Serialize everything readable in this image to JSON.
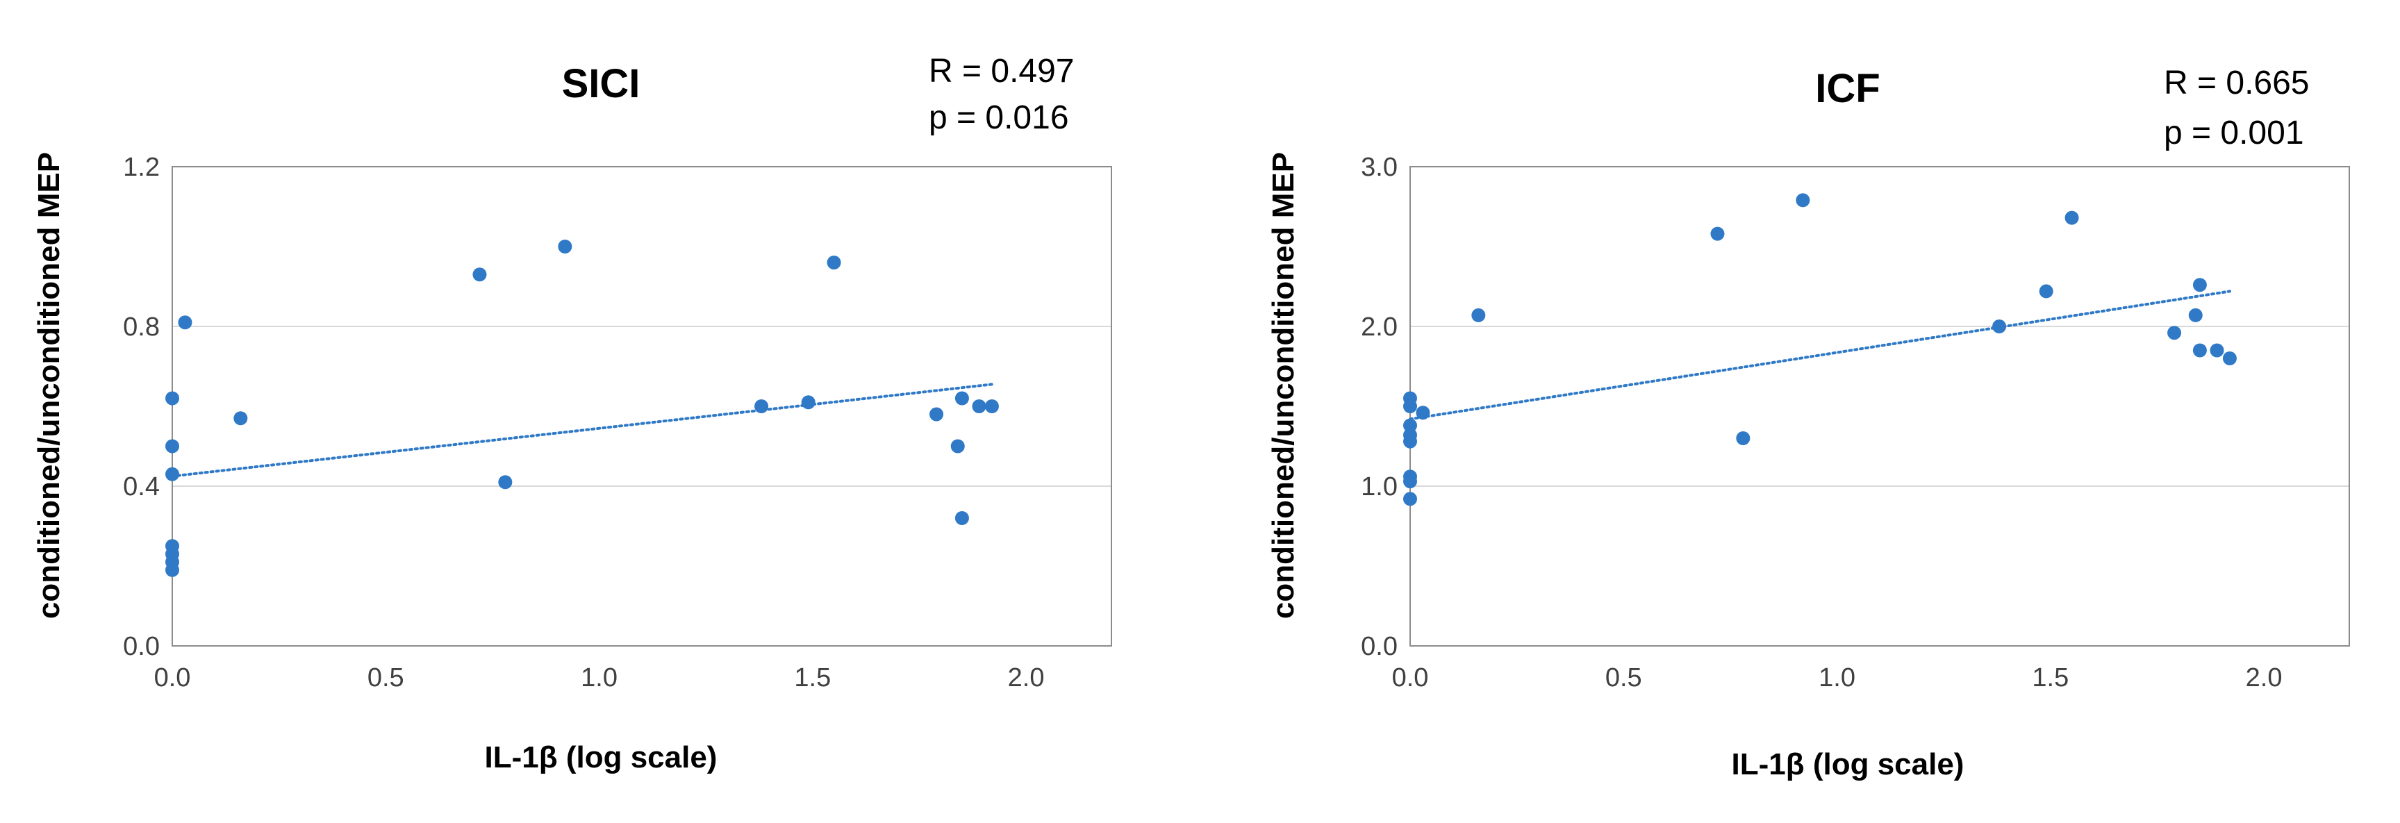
{
  "colors": {
    "point": "#2f79c6",
    "trend": "#2f79c6",
    "grid": "#d9d9d9",
    "frame": "#8c8c8c",
    "tick_text": "#404040",
    "text": "#000000"
  },
  "chart_data": [
    {
      "type": "scatter",
      "title": "SICI",
      "stats": {
        "r": "R = 0.497",
        "p": "p = 0.016"
      },
      "xlabel": "IL-1β (log scale)",
      "ylabel": "conditioned/unconditioned MEP",
      "xlim": [
        0,
        2.2
      ],
      "ylim": [
        0,
        1.2
      ],
      "xticks": [
        0,
        0.5,
        1,
        1.5,
        2
      ],
      "xtick_labels": [
        "0.0",
        "0.5",
        "1.0",
        "1.5",
        "2.0"
      ],
      "yticks": [
        0,
        0.4,
        0.8,
        1.2
      ],
      "ytick_labels": [
        "0.0",
        "0.4",
        "0.8",
        "1.2"
      ],
      "grid": "horizontal",
      "points": [
        {
          "x": 0.0,
          "y": 0.62
        },
        {
          "x": 0.0,
          "y": 0.5
        },
        {
          "x": 0.0,
          "y": 0.43
        },
        {
          "x": 0.0,
          "y": 0.25
        },
        {
          "x": 0.0,
          "y": 0.23
        },
        {
          "x": 0.0,
          "y": 0.21
        },
        {
          "x": 0.0,
          "y": 0.19
        },
        {
          "x": 0.03,
          "y": 0.81
        },
        {
          "x": 0.16,
          "y": 0.57
        },
        {
          "x": 0.72,
          "y": 0.93
        },
        {
          "x": 0.78,
          "y": 0.41
        },
        {
          "x": 0.92,
          "y": 1.0
        },
        {
          "x": 1.38,
          "y": 0.6
        },
        {
          "x": 1.49,
          "y": 0.61
        },
        {
          "x": 1.55,
          "y": 0.96
        },
        {
          "x": 1.79,
          "y": 0.58
        },
        {
          "x": 1.84,
          "y": 0.5
        },
        {
          "x": 1.85,
          "y": 0.62
        },
        {
          "x": 1.85,
          "y": 0.32
        },
        {
          "x": 1.89,
          "y": 0.6
        },
        {
          "x": 1.92,
          "y": 0.6
        }
      ],
      "trendline": {
        "x": [
          0,
          1.92
        ],
        "y": [
          0.425,
          0.655
        ]
      }
    },
    {
      "type": "scatter",
      "title": "ICF",
      "stats": {
        "r": "R = 0.665",
        "p": "p = 0.001"
      },
      "xlabel": "IL-1β (log scale)",
      "ylabel": "conditioned/unconditioned MEP",
      "xlim": [
        0,
        2.2
      ],
      "ylim": [
        0,
        3.0
      ],
      "xticks": [
        0,
        0.5,
        1,
        1.5,
        2
      ],
      "xtick_labels": [
        "0.0",
        "0.5",
        "1.0",
        "1.5",
        "2.0"
      ],
      "yticks": [
        0,
        1,
        2,
        3
      ],
      "ytick_labels": [
        "0.0",
        "1.0",
        "2.0",
        "3.0"
      ],
      "grid": "horizontal",
      "points": [
        {
          "x": 0.0,
          "y": 1.55
        },
        {
          "x": 0.0,
          "y": 1.5
        },
        {
          "x": 0.0,
          "y": 1.38
        },
        {
          "x": 0.0,
          "y": 1.32
        },
        {
          "x": 0.0,
          "y": 1.28
        },
        {
          "x": 0.0,
          "y": 1.06
        },
        {
          "x": 0.0,
          "y": 1.03
        },
        {
          "x": 0.0,
          "y": 0.92
        },
        {
          "x": 0.03,
          "y": 1.46
        },
        {
          "x": 0.16,
          "y": 2.07
        },
        {
          "x": 0.72,
          "y": 2.58
        },
        {
          "x": 0.78,
          "y": 1.3
        },
        {
          "x": 0.92,
          "y": 2.79
        },
        {
          "x": 1.38,
          "y": 2.0
        },
        {
          "x": 1.49,
          "y": 2.22
        },
        {
          "x": 1.55,
          "y": 2.68
        },
        {
          "x": 1.79,
          "y": 1.96
        },
        {
          "x": 1.84,
          "y": 2.07
        },
        {
          "x": 1.85,
          "y": 2.26
        },
        {
          "x": 1.85,
          "y": 1.85
        },
        {
          "x": 1.89,
          "y": 1.85
        },
        {
          "x": 1.92,
          "y": 1.8
        }
      ],
      "trendline": {
        "x": [
          0,
          1.92
        ],
        "y": [
          1.42,
          2.22
        ]
      }
    }
  ]
}
